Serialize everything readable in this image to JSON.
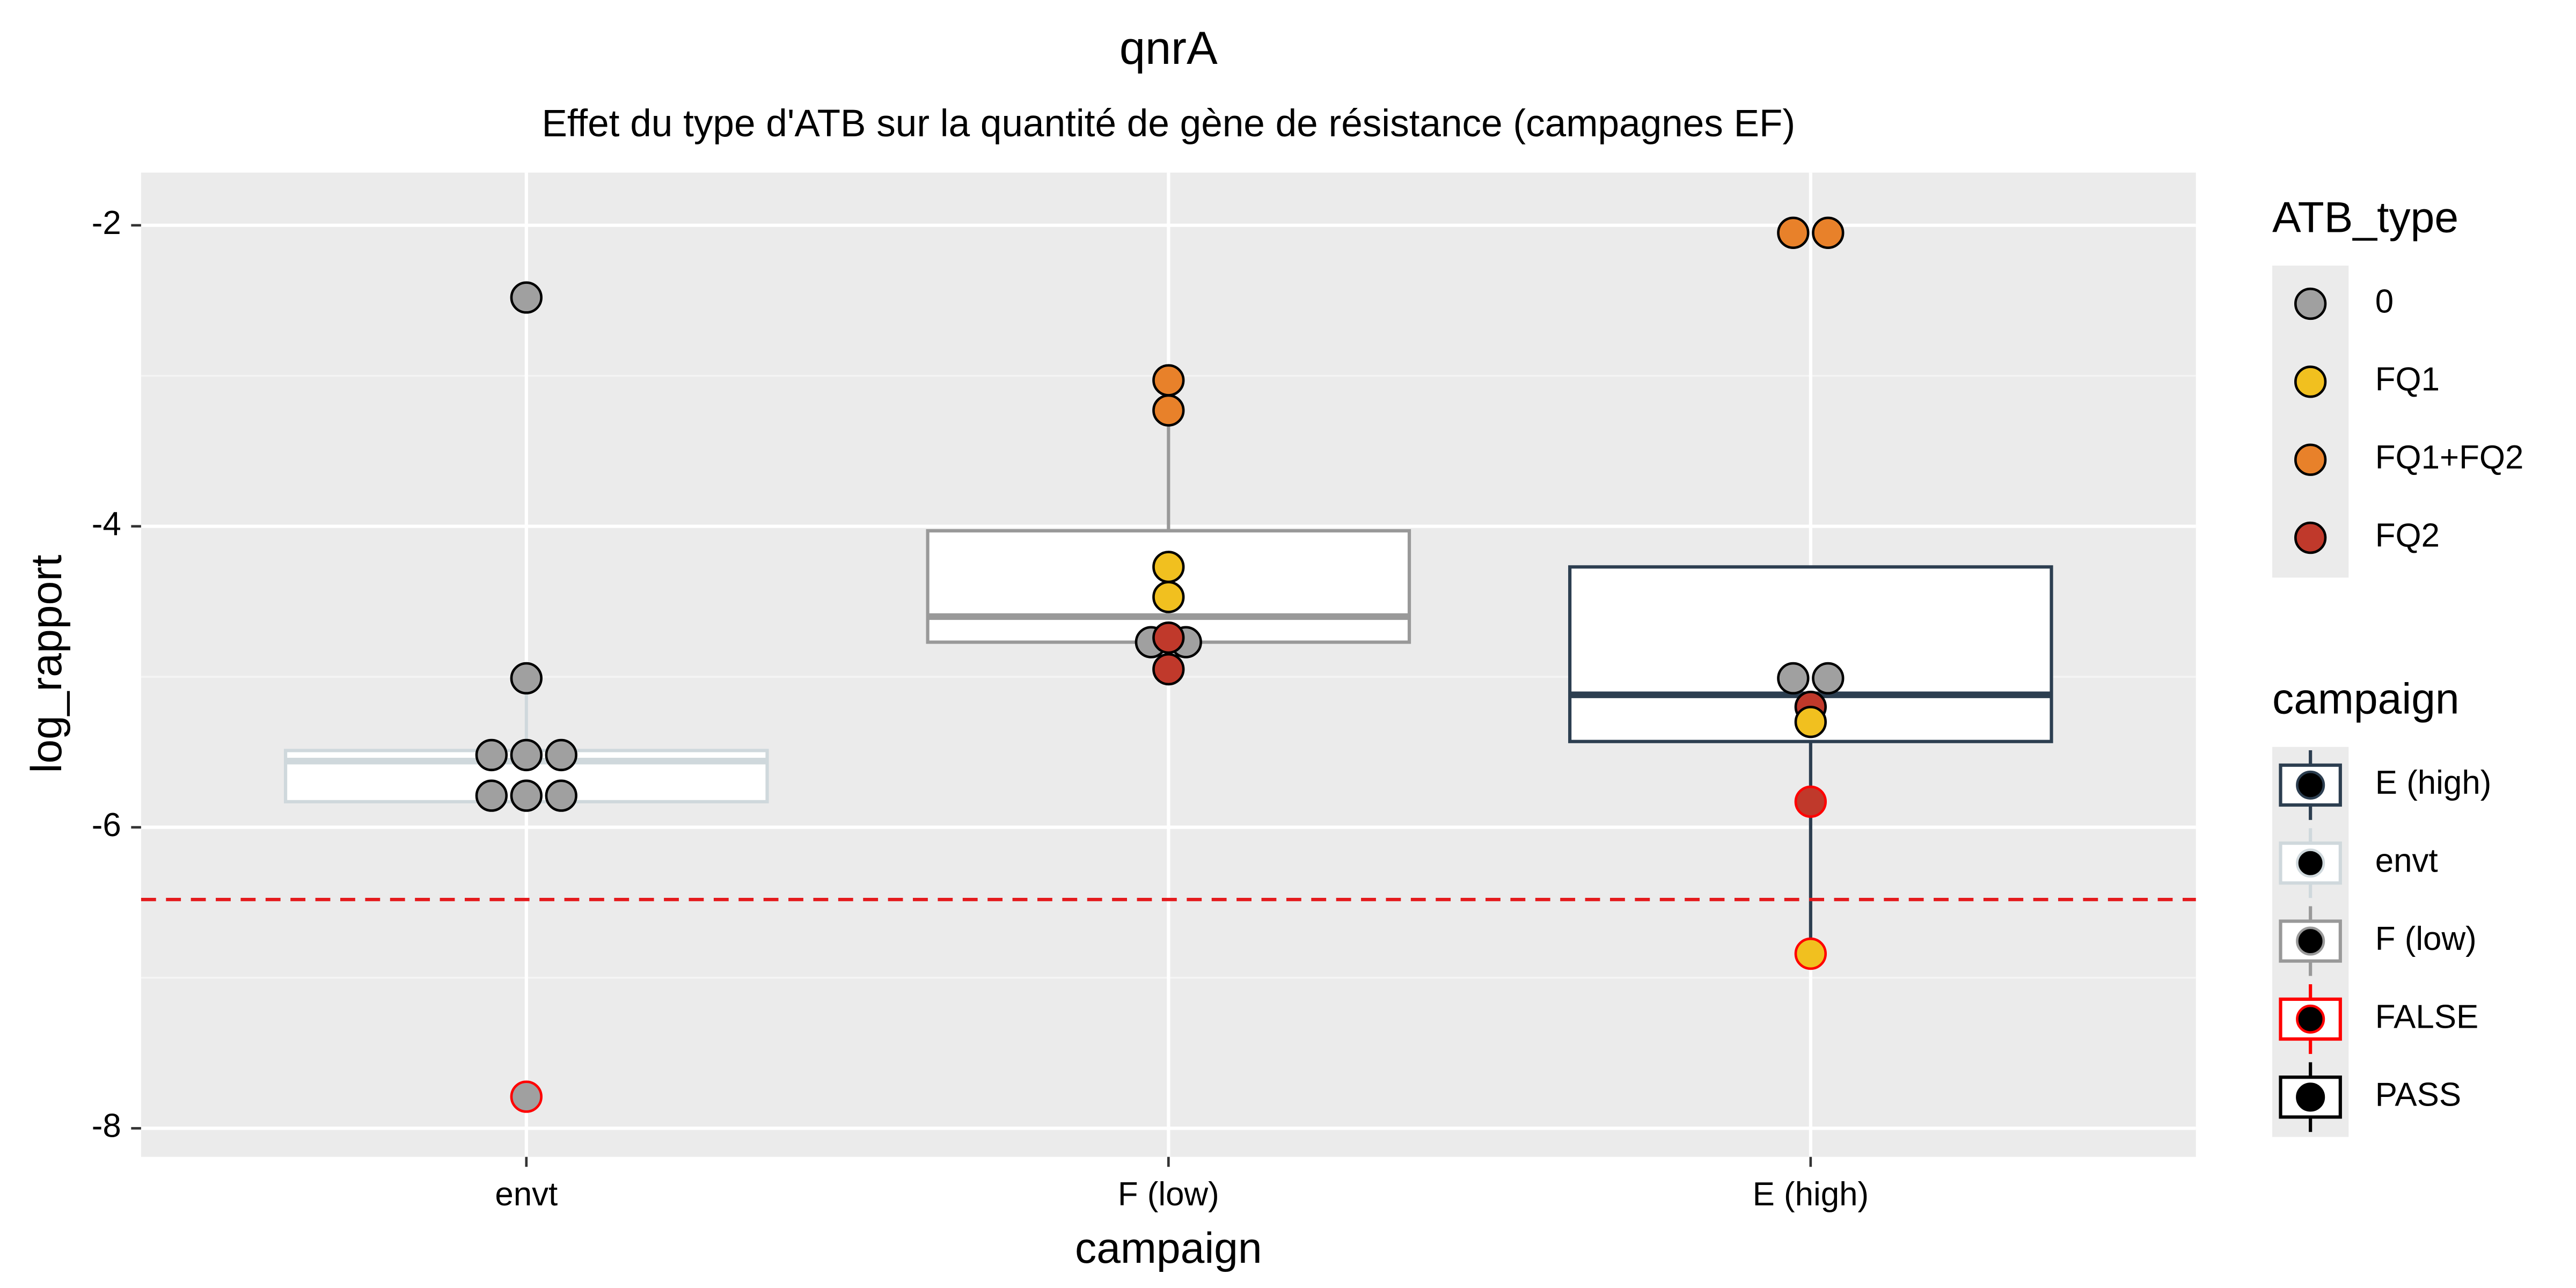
{
  "chart_data": {
    "type": "box",
    "title": "qnrA",
    "subtitle": "Effet du type d'ATB sur la quantité de gène de résistance (campagnes EF)",
    "x_label": "campaign",
    "y_label": "log_rapport",
    "categories": [
      "envt",
      "F (low)",
      "E (high)"
    ],
    "ylim": [
      -8.19,
      -1.65
    ],
    "yticks": [
      -2,
      -4,
      -6,
      -8
    ],
    "grid": true,
    "hline": {
      "value": -6.48,
      "color": "#e41a1c"
    },
    "boxes": [
      {
        "whisker_low": -5.83,
        "q1": -5.83,
        "median": -5.56,
        "q3": -5.49,
        "whisker_high": -5.01
      },
      {
        "whisker_low": -4.77,
        "q1": -4.77,
        "median": -4.6,
        "q3": -4.03,
        "whisker_high": -3.23
      },
      {
        "whisker_low": -6.84,
        "q1": -5.43,
        "median": -5.12,
        "q3": -4.27,
        "whisker_high": -4.27
      }
    ],
    "fill_legend": {
      "title": "ATB_type",
      "items": [
        {
          "name": "0",
          "color": "#a0a0a0"
        },
        {
          "name": "FQ1",
          "color": "#f1c01f"
        },
        {
          "name": "FQ1+FQ2",
          "color": "#e8812a"
        },
        {
          "name": "FQ2",
          "color": "#c0392b"
        }
      ]
    },
    "color_legend": {
      "title": "campaign",
      "items": [
        {
          "name": "E (high)",
          "color": "#2c3e50"
        },
        {
          "name": "envt",
          "color": "#cfd8dc"
        },
        {
          "name": "F (low)",
          "color": "#999999"
        },
        {
          "name": "FALSE",
          "color": "#ff0000"
        },
        {
          "name": "PASS",
          "color": "#000000"
        }
      ]
    },
    "points": [
      {
        "category": "envt",
        "value": -2.48,
        "ATB_type": "0",
        "campaign": "PASS"
      },
      {
        "category": "envt",
        "value": -5.01,
        "ATB_type": "0",
        "campaign": "PASS"
      },
      {
        "category": "envt",
        "value": -5.52,
        "ATB_type": "0",
        "campaign": "PASS"
      },
      {
        "category": "envt",
        "value": -5.52,
        "ATB_type": "0",
        "campaign": "PASS"
      },
      {
        "category": "envt",
        "value": -5.52,
        "ATB_type": "0",
        "campaign": "PASS"
      },
      {
        "category": "envt",
        "value": -5.79,
        "ATB_type": "0",
        "campaign": "PASS"
      },
      {
        "category": "envt",
        "value": -5.79,
        "ATB_type": "0",
        "campaign": "PASS"
      },
      {
        "category": "envt",
        "value": -5.79,
        "ATB_type": "0",
        "campaign": "PASS"
      },
      {
        "category": "envt",
        "value": -7.79,
        "ATB_type": "0",
        "campaign": "FALSE"
      },
      {
        "category": "F (low)",
        "value": -3.03,
        "ATB_type": "FQ1+FQ2",
        "campaign": "PASS"
      },
      {
        "category": "F (low)",
        "value": -3.23,
        "ATB_type": "FQ1+FQ2",
        "campaign": "PASS"
      },
      {
        "category": "F (low)",
        "value": -4.27,
        "ATB_type": "FQ1",
        "campaign": "PASS"
      },
      {
        "category": "F (low)",
        "value": -4.47,
        "ATB_type": "FQ1",
        "campaign": "PASS"
      },
      {
        "category": "F (low)",
        "value": -4.77,
        "ATB_type": "0",
        "campaign": "PASS"
      },
      {
        "category": "F (low)",
        "value": -4.77,
        "ATB_type": "0",
        "campaign": "PASS"
      },
      {
        "category": "F (low)",
        "value": -4.74,
        "ATB_type": "FQ2",
        "campaign": "PASS"
      },
      {
        "category": "F (low)",
        "value": -4.95,
        "ATB_type": "FQ2",
        "campaign": "PASS"
      },
      {
        "category": "E (high)",
        "value": -2.05,
        "ATB_type": "FQ1+FQ2",
        "campaign": "PASS"
      },
      {
        "category": "E (high)",
        "value": -2.05,
        "ATB_type": "FQ1+FQ2",
        "campaign": "PASS"
      },
      {
        "category": "E (high)",
        "value": -5.01,
        "ATB_type": "0",
        "campaign": "PASS"
      },
      {
        "category": "E (high)",
        "value": -5.01,
        "ATB_type": "0",
        "campaign": "PASS"
      },
      {
        "category": "E (high)",
        "value": -5.2,
        "ATB_type": "FQ2",
        "campaign": "PASS"
      },
      {
        "category": "E (high)",
        "value": -5.3,
        "ATB_type": "FQ1",
        "campaign": "PASS"
      },
      {
        "category": "E (high)",
        "value": -5.83,
        "ATB_type": "FQ2",
        "campaign": "FALSE"
      },
      {
        "category": "E (high)",
        "value": -6.84,
        "ATB_type": "FQ1",
        "campaign": "FALSE"
      }
    ]
  }
}
